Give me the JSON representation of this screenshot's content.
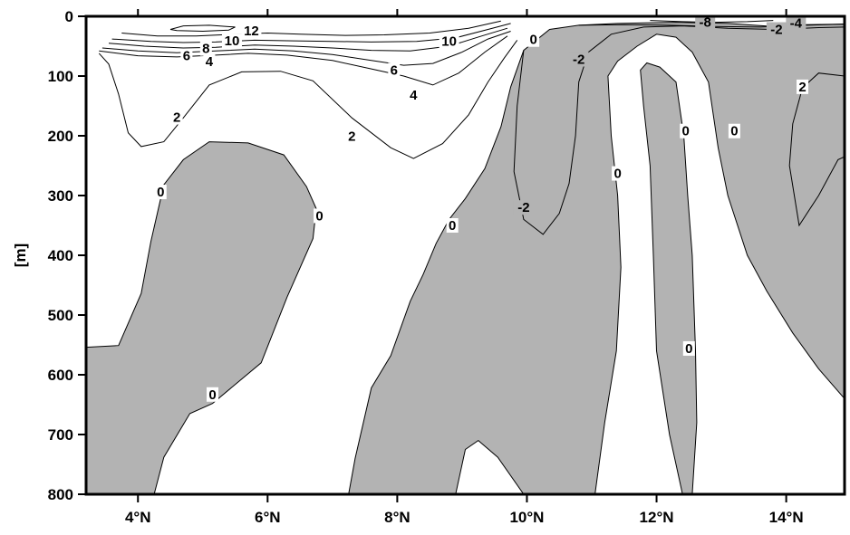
{
  "chart_data": {
    "type": "contour",
    "xlabel": "",
    "ylabel": "[m]",
    "xlim": [
      3.2,
      14.9
    ],
    "ylim": [
      800,
      0
    ],
    "x_ticks": [
      {
        "value": 4,
        "label": "4°N"
      },
      {
        "value": 6,
        "label": "6°N"
      },
      {
        "value": 8,
        "label": "8°N"
      },
      {
        "value": 10,
        "label": "10°N"
      },
      {
        "value": 12,
        "label": "12°N"
      },
      {
        "value": 14,
        "label": "14°N"
      }
    ],
    "y_ticks": [
      {
        "value": 0,
        "label": "0"
      },
      {
        "value": 100,
        "label": "100"
      },
      {
        "value": 200,
        "label": "200"
      },
      {
        "value": 300,
        "label": "300"
      },
      {
        "value": 400,
        "label": "400"
      },
      {
        "value": 500,
        "label": "500"
      },
      {
        "value": 600,
        "label": "600"
      },
      {
        "value": 700,
        "label": "700"
      },
      {
        "value": 800,
        "label": "800"
      }
    ],
    "fill_negative_color": "#b3b3b3",
    "negative_regions": [
      {
        "name": "region-south",
        "points": [
          [
            3.2,
            554
          ],
          [
            3.7,
            551
          ],
          [
            4.05,
            464
          ],
          [
            4.2,
            377
          ],
          [
            4.4,
            282
          ],
          [
            4.7,
            240
          ],
          [
            5.1,
            210
          ],
          [
            5.7,
            212
          ],
          [
            6.25,
            232
          ],
          [
            6.6,
            285
          ],
          [
            6.75,
            322
          ],
          [
            6.7,
            372
          ],
          [
            6.3,
            470
          ],
          [
            5.9,
            580
          ],
          [
            5.15,
            648
          ],
          [
            4.8,
            665
          ],
          [
            4.4,
            738
          ],
          [
            4.25,
            800
          ],
          [
            3.2,
            800
          ]
        ]
      },
      {
        "name": "region-central",
        "points": [
          [
            7.25,
            800
          ],
          [
            7.35,
            740
          ],
          [
            7.6,
            622
          ],
          [
            7.9,
            568
          ],
          [
            8.2,
            477
          ],
          [
            8.4,
            432
          ],
          [
            8.6,
            380
          ],
          [
            8.8,
            340
          ],
          [
            9.05,
            305
          ],
          [
            9.35,
            255
          ],
          [
            9.6,
            185
          ],
          [
            9.75,
            118
          ],
          [
            9.95,
            57
          ],
          [
            10.35,
            22
          ],
          [
            10.8,
            15
          ],
          [
            11.4,
            12
          ],
          [
            12.3,
            10
          ],
          [
            13.1,
            12
          ],
          [
            13.8,
            17
          ],
          [
            14.3,
            14
          ],
          [
            14.9,
            13
          ],
          [
            14.9,
            640
          ],
          [
            14.5,
            590
          ],
          [
            14.1,
            530
          ],
          [
            13.7,
            460
          ],
          [
            13.4,
            400
          ],
          [
            13.1,
            300
          ],
          [
            12.95,
            220
          ],
          [
            12.8,
            110
          ],
          [
            12.55,
            60
          ],
          [
            12.3,
            35
          ],
          [
            12.0,
            30
          ],
          [
            11.7,
            50
          ],
          [
            11.4,
            75
          ],
          [
            11.25,
            100
          ],
          [
            11.3,
            200
          ],
          [
            11.4,
            300
          ],
          [
            11.45,
            420
          ],
          [
            11.38,
            560
          ],
          [
            11.2,
            680
          ],
          [
            11.05,
            800
          ],
          [
            9.95,
            800
          ],
          [
            9.55,
            738
          ],
          [
            9.25,
            710
          ],
          [
            9.05,
            725
          ],
          [
            8.9,
            800
          ]
        ]
      },
      {
        "name": "region-northeast",
        "points": [
          [
            12.55,
            800
          ],
          [
            12.62,
            680
          ],
          [
            12.6,
            560
          ],
          [
            12.55,
            400
          ],
          [
            12.48,
            300
          ],
          [
            12.42,
            200
          ],
          [
            12.3,
            110
          ],
          [
            12.05,
            85
          ],
          [
            11.85,
            78
          ],
          [
            11.75,
            90
          ],
          [
            11.8,
            150
          ],
          [
            11.9,
            250
          ],
          [
            11.95,
            400
          ],
          [
            12.0,
            560
          ],
          [
            12.2,
            700
          ],
          [
            12.4,
            800
          ]
        ]
      }
    ],
    "contour_levels": [
      -8,
      -4,
      -2,
      0,
      2,
      4,
      6,
      8,
      10,
      12
    ],
    "contour_lines": [
      {
        "level": 2,
        "points": [
          [
            3.4,
            62
          ],
          [
            3.55,
            80
          ],
          [
            3.7,
            130
          ],
          [
            3.85,
            195
          ],
          [
            4.05,
            218
          ],
          [
            4.4,
            210
          ],
          [
            4.7,
            170
          ],
          [
            5.1,
            115
          ],
          [
            5.6,
            93
          ],
          [
            6.2,
            92
          ],
          [
            6.7,
            108
          ],
          [
            7.3,
            170
          ],
          [
            7.9,
            220
          ],
          [
            8.25,
            238
          ],
          [
            8.7,
            213
          ],
          [
            9.1,
            165
          ],
          [
            9.4,
            110
          ],
          [
            9.65,
            70
          ],
          [
            9.85,
            40
          ]
        ]
      },
      {
        "level": 4,
        "points": [
          [
            3.4,
            58
          ],
          [
            4.0,
            66
          ],
          [
            4.6,
            68
          ],
          [
            5.2,
            65
          ],
          [
            5.7,
            62
          ],
          [
            6.3,
            65
          ],
          [
            7.0,
            74
          ],
          [
            7.6,
            88
          ],
          [
            8.1,
            100
          ],
          [
            8.55,
            115
          ],
          [
            8.95,
            95
          ],
          [
            9.35,
            60
          ],
          [
            9.7,
            33
          ]
        ]
      },
      {
        "level": 6,
        "points": [
          [
            3.45,
            53
          ],
          [
            4.0,
            58
          ],
          [
            4.6,
            61
          ],
          [
            5.2,
            58
          ],
          [
            5.8,
            55
          ],
          [
            6.4,
            58
          ],
          [
            7.0,
            64
          ],
          [
            7.6,
            74
          ],
          [
            8.1,
            82
          ],
          [
            8.55,
            79
          ],
          [
            9.0,
            60
          ],
          [
            9.4,
            38
          ],
          [
            9.75,
            25
          ]
        ]
      },
      {
        "level": 8,
        "points": [
          [
            3.55,
            45
          ],
          [
            4.1,
            50
          ],
          [
            4.7,
            53
          ],
          [
            5.2,
            52
          ],
          [
            5.8,
            48
          ],
          [
            6.4,
            50
          ],
          [
            7.0,
            53
          ],
          [
            7.6,
            57
          ],
          [
            8.2,
            58
          ],
          [
            8.8,
            50
          ],
          [
            9.3,
            33
          ],
          [
            9.7,
            20
          ]
        ]
      },
      {
        "level": 10,
        "points": [
          [
            3.6,
            38
          ],
          [
            4.2,
            42
          ],
          [
            4.7,
            44
          ],
          [
            5.2,
            43
          ],
          [
            5.8,
            40
          ],
          [
            6.4,
            41
          ],
          [
            7.0,
            42
          ],
          [
            7.6,
            43
          ],
          [
            8.3,
            42
          ],
          [
            8.9,
            36
          ],
          [
            9.4,
            22
          ],
          [
            9.75,
            12
          ]
        ]
      },
      {
        "level": 12,
        "points": [
          [
            3.75,
            28
          ],
          [
            4.3,
            33
          ],
          [
            4.9,
            33
          ],
          [
            5.5,
            30
          ],
          [
            6.0,
            28
          ],
          [
            6.5,
            30
          ],
          [
            7.2,
            32
          ],
          [
            7.8,
            31
          ],
          [
            8.5,
            28
          ],
          [
            9.1,
            20
          ],
          [
            9.6,
            8
          ]
        ]
      },
      {
        "level": 12,
        "points": [
          [
            4.5,
            22
          ],
          [
            4.7,
            16
          ],
          [
            5.1,
            15
          ],
          [
            5.5,
            18
          ],
          [
            5.4,
            23
          ],
          [
            5.0,
            25
          ],
          [
            4.6,
            24
          ],
          [
            4.5,
            22
          ]
        ]
      },
      {
        "level": 2,
        "points": [
          [
            14.9,
            100
          ],
          [
            14.5,
            95
          ],
          [
            14.25,
            120
          ],
          [
            14.1,
            180
          ],
          [
            14.05,
            250
          ],
          [
            14.2,
            350
          ],
          [
            14.5,
            300
          ],
          [
            14.8,
            240
          ],
          [
            14.9,
            235
          ]
        ]
      },
      {
        "level": -2,
        "points": [
          [
            9.95,
            57
          ],
          [
            9.85,
            150
          ],
          [
            9.8,
            260
          ],
          [
            9.95,
            340
          ],
          [
            10.25,
            365
          ],
          [
            10.5,
            330
          ],
          [
            10.65,
            280
          ],
          [
            10.75,
            200
          ],
          [
            10.8,
            110
          ],
          [
            10.95,
            60
          ],
          [
            11.3,
            30
          ],
          [
            11.8,
            18
          ],
          [
            12.4,
            16
          ],
          [
            13.1,
            20
          ],
          [
            13.8,
            22
          ],
          [
            14.5,
            19
          ],
          [
            14.9,
            18
          ]
        ]
      },
      {
        "level": -4,
        "points": [
          [
            10.8,
            15
          ],
          [
            11.5,
            14
          ],
          [
            12.2,
            15
          ],
          [
            12.9,
            17
          ],
          [
            13.6,
            18
          ],
          [
            14.3,
            15
          ],
          [
            14.9,
            13
          ]
        ]
      },
      {
        "level": -8,
        "points": [
          [
            11.9,
            7
          ],
          [
            12.4,
            9
          ],
          [
            12.9,
            10
          ],
          [
            13.4,
            9
          ],
          [
            13.8,
            7
          ]
        ]
      }
    ],
    "contour_labels": [
      {
        "text": "12",
        "x": 5.75,
        "y": 24
      },
      {
        "text": "10",
        "x": 5.45,
        "y": 41
      },
      {
        "text": "8",
        "x": 5.05,
        "y": 54
      },
      {
        "text": "6",
        "x": 4.75,
        "y": 66
      },
      {
        "text": "4",
        "x": 5.1,
        "y": 76
      },
      {
        "text": "10",
        "x": 8.8,
        "y": 42
      },
      {
        "text": "6",
        "x": 7.95,
        "y": 90
      },
      {
        "text": "4",
        "x": 8.25,
        "y": 132
      },
      {
        "text": "2",
        "x": 4.6,
        "y": 169
      },
      {
        "text": "2",
        "x": 7.3,
        "y": 201
      },
      {
        "text": "0",
        "x": 10.1,
        "y": 39
      },
      {
        "text": "-2",
        "x": 10.8,
        "y": 72
      },
      {
        "text": "-8",
        "x": 12.75,
        "y": 10
      },
      {
        "text": "-2",
        "x": 13.85,
        "y": 22
      },
      {
        "text": "-4",
        "x": 14.15,
        "y": 11
      },
      {
        "text": "2",
        "x": 14.25,
        "y": 118
      },
      {
        "text": "0",
        "x": 4.35,
        "y": 294
      },
      {
        "text": "0",
        "x": 6.8,
        "y": 334
      },
      {
        "text": "0",
        "x": 12.45,
        "y": 192
      },
      {
        "text": "0",
        "x": 13.2,
        "y": 192
      },
      {
        "text": "0",
        "x": 11.4,
        "y": 263
      },
      {
        "text": "-2",
        "x": 9.95,
        "y": 320
      },
      {
        "text": "0",
        "x": 8.85,
        "y": 350
      },
      {
        "text": "0",
        "x": 12.5,
        "y": 556
      },
      {
        "text": "0",
        "x": 5.15,
        "y": 633
      }
    ]
  }
}
